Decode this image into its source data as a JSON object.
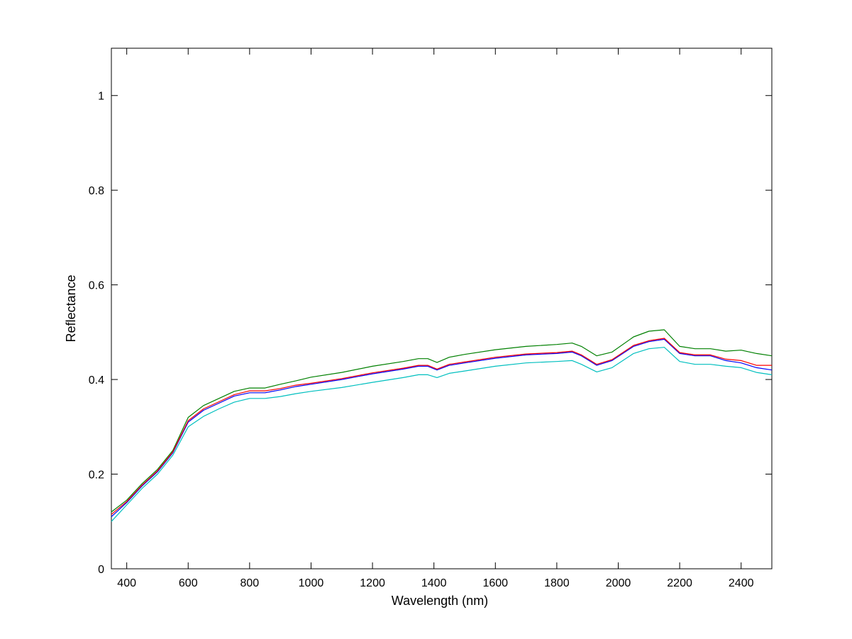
{
  "chart_data": {
    "type": "line",
    "title": "",
    "xlabel": "Wavelength (nm)",
    "ylabel": "Reflectance",
    "xlim": [
      350,
      2500
    ],
    "ylim": [
      0,
      1.1
    ],
    "x_ticks": [
      400,
      600,
      800,
      1000,
      1200,
      1400,
      1600,
      1800,
      2000,
      2200,
      2400
    ],
    "x_tick_labels": [
      "400",
      "600",
      "800",
      "1000",
      "1200",
      "1400",
      "1600",
      "1800",
      "2000",
      "2200",
      "2400"
    ],
    "y_ticks": [
      0,
      0.2,
      0.4,
      0.6,
      0.8,
      1
    ],
    "y_tick_labels": [
      "0",
      "0.2",
      "0.4",
      "0.6",
      "0.8",
      "1"
    ],
    "grid": false,
    "legend": "none",
    "x": [
      350,
      400,
      450,
      500,
      550,
      600,
      650,
      700,
      750,
      800,
      850,
      900,
      950,
      1000,
      1100,
      1200,
      1300,
      1350,
      1380,
      1410,
      1450,
      1500,
      1600,
      1700,
      1800,
      1850,
      1880,
      1930,
      1980,
      2050,
      2100,
      2150,
      2200,
      2250,
      2300,
      2350,
      2400,
      2450,
      2500
    ],
    "series": [
      {
        "color": "#0000ff",
        "values": [
          0.11,
          0.14,
          0.175,
          0.205,
          0.245,
          0.31,
          0.335,
          0.35,
          0.365,
          0.372,
          0.372,
          0.378,
          0.385,
          0.39,
          0.4,
          0.412,
          0.422,
          0.428,
          0.428,
          0.42,
          0.43,
          0.435,
          0.445,
          0.452,
          0.455,
          0.458,
          0.45,
          0.43,
          0.44,
          0.47,
          0.48,
          0.485,
          0.455,
          0.45,
          0.45,
          0.44,
          0.435,
          0.425,
          0.42
        ]
      },
      {
        "color": "#008000",
        "values": [
          0.12,
          0.145,
          0.18,
          0.21,
          0.25,
          0.32,
          0.345,
          0.36,
          0.375,
          0.382,
          0.382,
          0.39,
          0.397,
          0.405,
          0.415,
          0.428,
          0.438,
          0.444,
          0.444,
          0.436,
          0.447,
          0.453,
          0.463,
          0.47,
          0.474,
          0.477,
          0.47,
          0.45,
          0.458,
          0.49,
          0.502,
          0.505,
          0.47,
          0.465,
          0.465,
          0.46,
          0.462,
          0.455,
          0.45
        ]
      },
      {
        "color": "#ff0000",
        "values": [
          0.115,
          0.142,
          0.177,
          0.207,
          0.247,
          0.313,
          0.338,
          0.353,
          0.368,
          0.376,
          0.376,
          0.381,
          0.388,
          0.392,
          0.402,
          0.414,
          0.424,
          0.43,
          0.43,
          0.422,
          0.432,
          0.437,
          0.447,
          0.454,
          0.457,
          0.46,
          0.452,
          0.432,
          0.442,
          0.472,
          0.482,
          0.487,
          0.457,
          0.452,
          0.452,
          0.443,
          0.44,
          0.43,
          0.43
        ]
      },
      {
        "color": "#00bfbf",
        "values": [
          0.1,
          0.135,
          0.17,
          0.2,
          0.24,
          0.3,
          0.322,
          0.338,
          0.352,
          0.36,
          0.36,
          0.364,
          0.37,
          0.375,
          0.383,
          0.394,
          0.404,
          0.41,
          0.41,
          0.404,
          0.413,
          0.418,
          0.428,
          0.435,
          0.438,
          0.44,
          0.432,
          0.416,
          0.425,
          0.455,
          0.465,
          0.468,
          0.438,
          0.432,
          0.432,
          0.428,
          0.425,
          0.415,
          0.41
        ]
      }
    ]
  }
}
